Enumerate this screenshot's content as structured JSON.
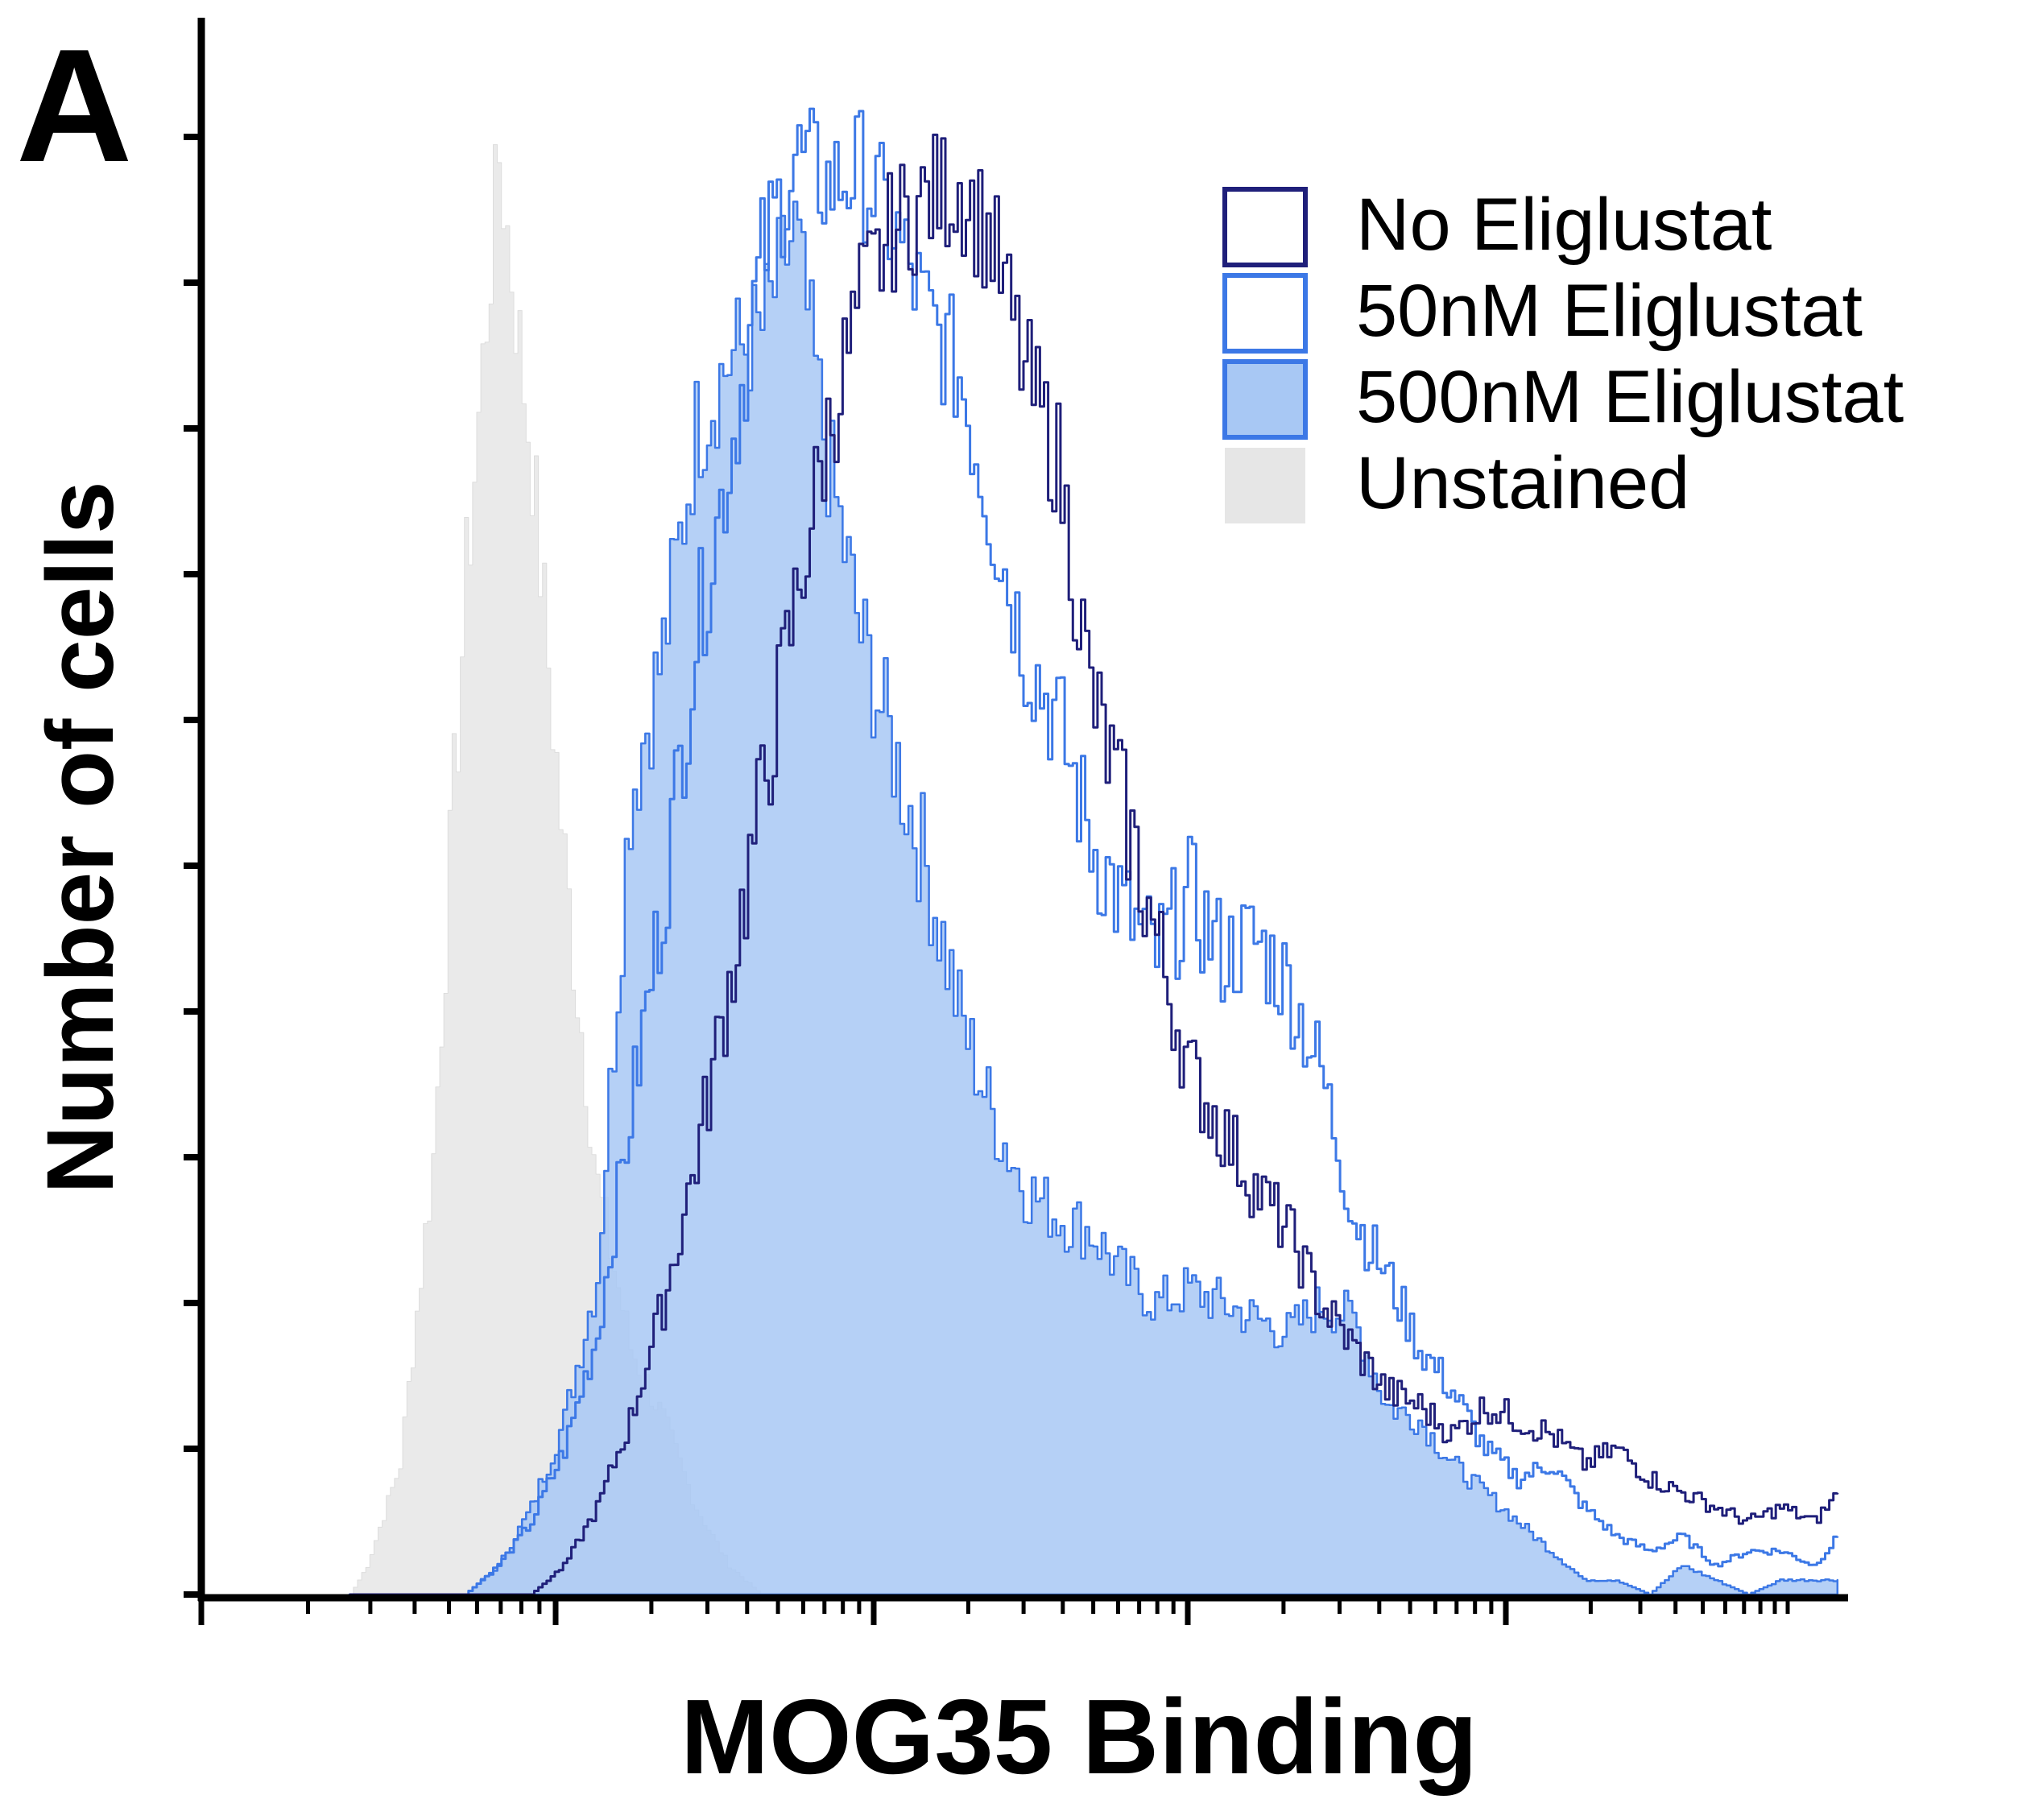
{
  "panel_label": "A",
  "chart_data": {
    "type": "area",
    "title": "",
    "xlabel": "MOG35 Binding",
    "ylabel": "Number of cells",
    "x_scale": "log",
    "xlim": [
      0,
      100
    ],
    "ylim": [
      0,
      100
    ],
    "tick_labels_shown": false,
    "legend_position": "top-right",
    "legend": [
      {
        "label": "No Eliglustat",
        "style": "outline",
        "color": "#1f1f7a"
      },
      {
        "label": "50nM Eliglustat",
        "style": "outline",
        "color": "#3c78e6"
      },
      {
        "label": "500nM Eliglustat",
        "style": "filled",
        "color": "#3c78e6",
        "fill": "#a8c8f4"
      },
      {
        "label": "Unstained",
        "style": "filled",
        "color": "#dddddd",
        "fill": "#e6e6e6"
      }
    ],
    "x": [
      9,
      10,
      12,
      14,
      16,
      18,
      20,
      22,
      24,
      26,
      28,
      30,
      32,
      34,
      36,
      38,
      40,
      42,
      44,
      46,
      48,
      50,
      52,
      54,
      56,
      58,
      60,
      62,
      64,
      66,
      68,
      70,
      72,
      74,
      76,
      78,
      80,
      82,
      84,
      86,
      88,
      90,
      92,
      94,
      96,
      98,
      99.5
    ],
    "series": [
      {
        "name": "Unstained",
        "values": [
          0,
          2,
          9,
          30,
          70,
          99,
          78,
          50,
          28,
          17,
          12,
          6,
          2,
          0,
          0,
          0,
          0,
          0,
          0,
          0,
          0,
          0,
          0,
          0,
          0,
          0,
          0,
          0,
          0,
          0,
          0,
          0,
          0,
          0,
          0,
          0,
          0,
          0,
          0,
          0,
          0,
          0,
          0,
          0,
          0,
          0,
          0
        ]
      },
      {
        "name": "500nM Eliglustat",
        "values": [
          0,
          0,
          0,
          0,
          0,
          2,
          6,
          12,
          22,
          55,
          65,
          80,
          85,
          87,
          94,
          78,
          66,
          58,
          50,
          40,
          33,
          28,
          26,
          25,
          22,
          20,
          21,
          20,
          19,
          18,
          20,
          19,
          13,
          12,
          9,
          7,
          5,
          3,
          1,
          1,
          0,
          2,
          1,
          0,
          1,
          1,
          1
        ]
      },
      {
        "name": "50nM Eliglustat",
        "values": [
          0,
          0,
          0,
          0,
          0,
          2,
          5,
          10,
          18,
          33,
          48,
          66,
          78,
          92,
          99,
          97,
          98,
          94,
          88,
          84,
          74,
          65,
          60,
          52,
          47,
          44,
          48,
          44,
          45,
          42,
          36,
          26,
          22,
          17,
          14,
          10,
          8,
          9,
          6,
          4,
          3,
          4,
          2,
          3,
          3,
          2,
          4
        ]
      },
      {
        "name": "No Eliglustat",
        "values": [
          0,
          0,
          0,
          0,
          0,
          0,
          0,
          2,
          6,
          12,
          20,
          30,
          42,
          55,
          68,
          80,
          89,
          94,
          96,
          97,
          93,
          84,
          78,
          62,
          54,
          45,
          36,
          32,
          28,
          25,
          20,
          17,
          14,
          13,
          11,
          13,
          12,
          11,
          9,
          10,
          8,
          7,
          6,
          5,
          6,
          5,
          7
        ]
      }
    ]
  }
}
